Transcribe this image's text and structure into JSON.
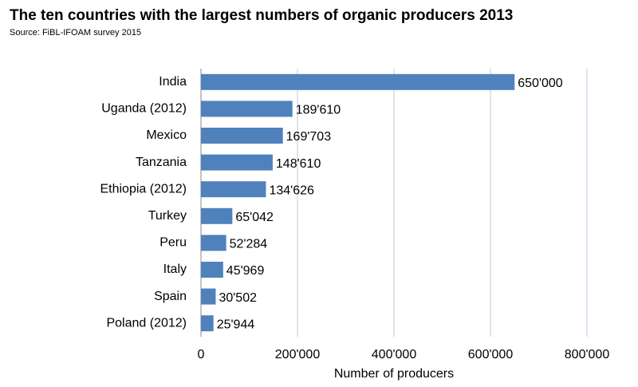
{
  "chart_data": {
    "type": "bar",
    "orientation": "horizontal",
    "title": "The ten countries with the largest numbers of organic producers 2013",
    "subtitle": "Source: FiBL-IFOAM survey 2015",
    "x_label": "Number of producers",
    "categories": [
      "India",
      "Uganda (2012)",
      "Mexico",
      "Tanzania",
      "Ethiopia (2012)",
      "Turkey",
      "Peru",
      "Italy",
      "Spain",
      "Poland (2012)"
    ],
    "values": [
      650000,
      189610,
      169703,
      148610,
      134626,
      65042,
      52284,
      45969,
      30502,
      25944
    ],
    "value_labels": [
      "650'000",
      "189'610",
      "169'703",
      "148'610",
      "134'626",
      "65'042",
      "52'284",
      "45'969",
      "30'502",
      "25'944"
    ],
    "color": "#4f81bd",
    "xlim": [
      0,
      800000
    ],
    "xticks": [
      0,
      {
        "value": 200000,
        "label": "200'000"
      },
      {
        "value": 400000,
        "label": "400'000"
      },
      {
        "value": 600000,
        "label": "600'000"
      },
      {
        "value": 800000,
        "label": "800'000"
      }
    ],
    "grid": true
  }
}
